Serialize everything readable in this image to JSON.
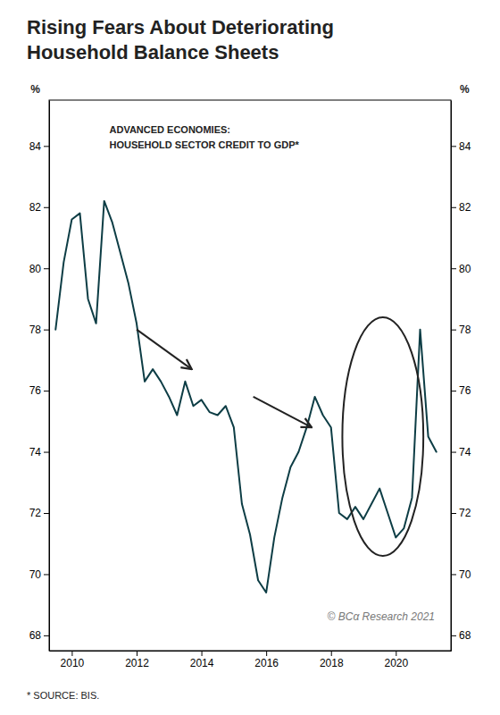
{
  "chart_data": {
    "type": "line",
    "title": [
      "Rising Fears About Deteriorating",
      "Household Balance Sheets"
    ],
    "annotations": [
      "ADVANCED ECONOMIES:",
      "HOUSEHOLD SECTOR CREDIT TO GDP*"
    ],
    "copyright": "© BCα Research 2021",
    "source": "* SOURCE: BIS.",
    "ylabel": "%",
    "y2label": "%",
    "x": [
      2009.5,
      2009.75,
      2010.0,
      2010.25,
      2010.5,
      2010.75,
      2011.0,
      2011.25,
      2011.5,
      2011.75,
      2012.0,
      2012.25,
      2012.5,
      2012.75,
      2013.0,
      2013.25,
      2013.5,
      2013.75,
      2014.0,
      2014.25,
      2014.5,
      2014.75,
      2015.0,
      2015.25,
      2015.5,
      2015.75,
      2016.0,
      2016.25,
      2016.5,
      2016.75,
      2017.0,
      2017.25,
      2017.5,
      2017.75,
      2018.0,
      2018.25,
      2018.5,
      2018.75,
      2019.0,
      2019.25,
      2019.5,
      2019.75,
      2020.0,
      2020.25,
      2020.5,
      2020.75,
      2021.0,
      2021.25
    ],
    "series": [
      {
        "color": "#0d3d45",
        "values": [
          78.0,
          80.2,
          81.6,
          81.8,
          79.0,
          78.2,
          82.2,
          81.5,
          80.5,
          79.5,
          78.2,
          76.3,
          76.7,
          76.3,
          75.8,
          75.2,
          76.3,
          75.5,
          75.7,
          75.3,
          75.2,
          75.5,
          74.8,
          72.3,
          71.3,
          69.8,
          69.4,
          71.2,
          72.5,
          73.5,
          74.0,
          74.8,
          75.8,
          75.2,
          74.8,
          72.0,
          71.8,
          72.2,
          71.8,
          72.3,
          72.8,
          72.0,
          71.2,
          71.5,
          72.5,
          78.0,
          74.5,
          74.0
        ]
      }
    ],
    "arrows": [
      {
        "from": [
          2012.0,
          78.0
        ],
        "to": [
          2013.7,
          76.7
        ]
      },
      {
        "from": [
          2015.6,
          75.8
        ],
        "to": [
          2017.4,
          74.8
        ]
      }
    ],
    "ellipses": [
      {
        "center": [
          2019.6,
          74.5
        ],
        "width": 2.5,
        "height": 7.8
      }
    ],
    "xlim": [
      2009.3,
      2021.7
    ],
    "xticks": [
      2010,
      2012,
      2014,
      2016,
      2018,
      2020
    ],
    "ylim": [
      67.5,
      85.5
    ],
    "yticks": [
      68,
      70,
      72,
      74,
      76,
      78,
      80,
      82,
      84
    ],
    "y2lim": [
      67.5,
      85.5
    ],
    "y2ticks": [
      68,
      70,
      72,
      74,
      76,
      78,
      80,
      82,
      84
    ],
    "grid": false
  }
}
